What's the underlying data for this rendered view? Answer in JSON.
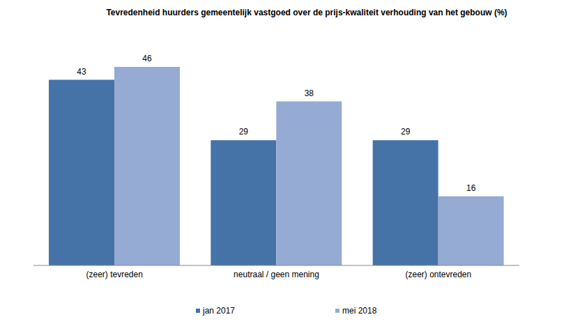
{
  "chart_data": {
    "type": "bar",
    "title": "Tevredenheid huurders gemeentelijk vastgoed over de prijs-kwaliteit verhouding van het gebouw (%)",
    "categories": [
      "(zeer) tevreden",
      "neutraal / geen mening",
      "(zeer) ontevreden"
    ],
    "series": [
      {
        "name": "jan 2017",
        "color": "#4673a7",
        "values": [
          43,
          29,
          29
        ]
      },
      {
        "name": "mei 2018",
        "color": "#95abd3",
        "values": [
          46,
          38,
          16
        ]
      }
    ],
    "data_labels": true,
    "tick_labels": "x",
    "legend": "bottom",
    "grid": false
  }
}
